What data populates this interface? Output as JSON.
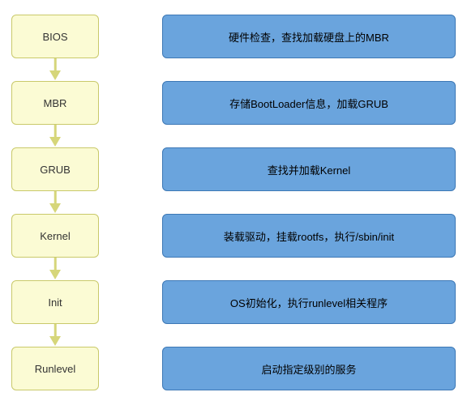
{
  "type": "flowchart",
  "leftBox": {
    "background": "#fbfbd4",
    "border": "#c9c96a",
    "text": "#333333",
    "fontsize": 13
  },
  "rightBox": {
    "background": "#6aa4dd",
    "border": "#3d78b5",
    "text": "#000000",
    "fontsize": 13
  },
  "arrow": {
    "color": "#d6d67a"
  },
  "steps": [
    {
      "label": "BIOS",
      "desc": "硬件检查，查找加载硬盘上的MBR"
    },
    {
      "label": "MBR",
      "desc": "存储BootLoader信息，加载GRUB"
    },
    {
      "label": "GRUB",
      "desc": "查找并加载Kernel"
    },
    {
      "label": "Kernel",
      "desc": "装载驱动，挂载rootfs，执行/sbin/init"
    },
    {
      "label": "Init",
      "desc": "OS初始化，执行runlevel相关程序"
    },
    {
      "label": "Runlevel",
      "desc": "启动指定级别的服务"
    }
  ]
}
